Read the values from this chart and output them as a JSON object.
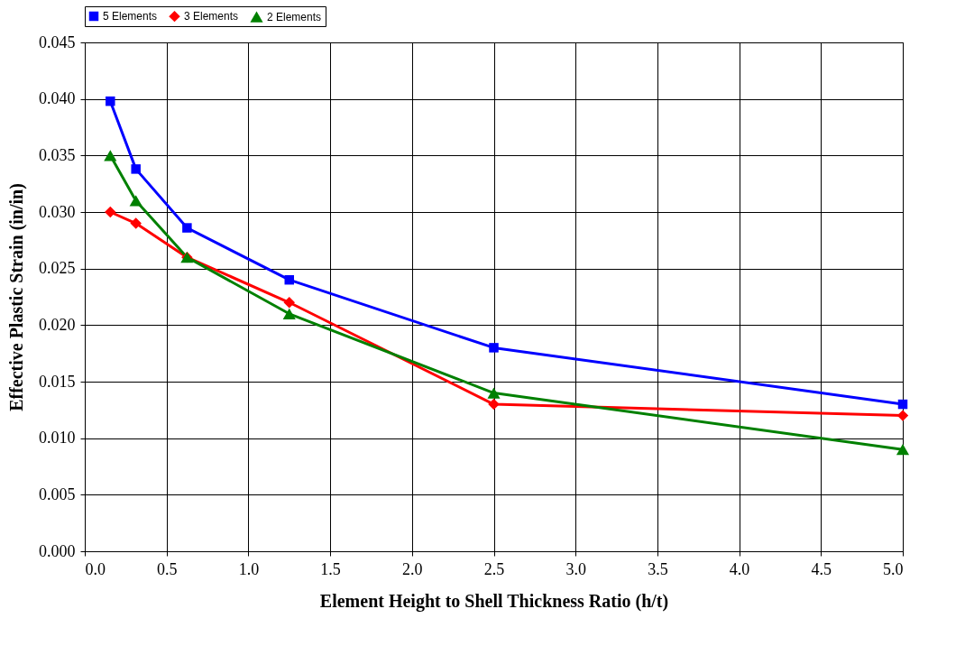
{
  "chart_data": {
    "type": "line",
    "xlabel": "Element Height to Shell Thickness Ratio (h/t)",
    "ylabel": "Effective Plastic Strain (in/in)",
    "x": [
      0.156,
      0.3125,
      0.625,
      1.25,
      2.5,
      5.0
    ],
    "series": [
      {
        "name": "5 Elements",
        "color": "#0000ff",
        "marker": "square",
        "values": [
          0.0398,
          0.0338,
          0.0286,
          0.024,
          0.018,
          0.013
        ]
      },
      {
        "name": "3 Elements",
        "color": "#ff0000",
        "marker": "diamond",
        "values": [
          0.03,
          0.029,
          0.026,
          0.022,
          0.013,
          0.012
        ]
      },
      {
        "name": "2 Elements",
        "color": "#008000",
        "marker": "triangle",
        "values": [
          0.035,
          0.031,
          0.026,
          0.021,
          0.014,
          0.009
        ]
      }
    ],
    "xlim": [
      0,
      5
    ],
    "xticks": [
      {
        "value": 0,
        "label": "0.0"
      },
      {
        "value": 0.5,
        "label": "0.5"
      },
      {
        "value": 1,
        "label": "1.0"
      },
      {
        "value": 1.5,
        "label": "1.5"
      },
      {
        "value": 2,
        "label": "2.0"
      },
      {
        "value": 2.5,
        "label": "2.5"
      },
      {
        "value": 3,
        "label": "3.0"
      },
      {
        "value": 3.5,
        "label": "3.5"
      },
      {
        "value": 4,
        "label": "4.0"
      },
      {
        "value": 4.5,
        "label": "4.5"
      },
      {
        "value": 5,
        "label": "5.0"
      }
    ],
    "ylim": [
      0,
      0.045
    ],
    "yticks": [
      {
        "value": 0,
        "label": "0.000"
      },
      {
        "value": 0.005,
        "label": "0.005"
      },
      {
        "value": 0.01,
        "label": "0.010"
      },
      {
        "value": 0.015,
        "label": "0.015"
      },
      {
        "value": 0.02,
        "label": "0.020"
      },
      {
        "value": 0.025,
        "label": "0.025"
      },
      {
        "value": 0.03,
        "label": "0.030"
      },
      {
        "value": 0.035,
        "label": "0.035"
      },
      {
        "value": 0.04,
        "label": "0.040"
      },
      {
        "value": 0.045,
        "label": "0.045"
      }
    ],
    "grid": true,
    "legend": "top",
    "line_style": "solid"
  }
}
